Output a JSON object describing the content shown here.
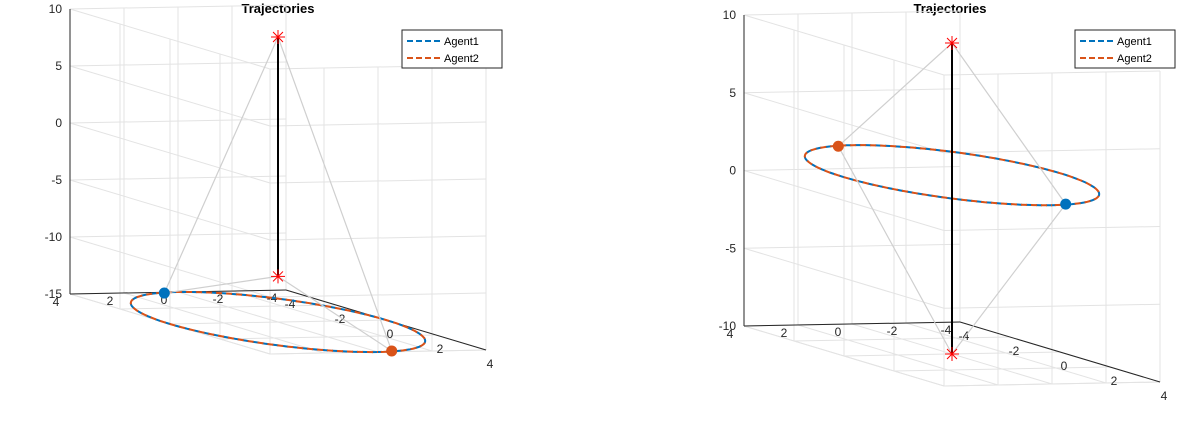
{
  "chart_data": [
    {
      "type": "line",
      "title": "Trajectories",
      "legend": {
        "placement": "top-right",
        "entries": [
          "Agent1",
          "Agent2"
        ]
      },
      "zlim": [
        -15,
        10
      ],
      "z_ticks": [
        "10",
        "5",
        "0",
        "-5",
        "-10",
        "-15"
      ],
      "y_ticks": [
        "4",
        "2",
        "0",
        "-2",
        "-4"
      ],
      "x_ticks": [
        "-4",
        "-2",
        "0",
        "2",
        "4"
      ],
      "grid": true,
      "circle_radius": 4,
      "circle_z": -15,
      "pole_base_z": -15,
      "top_marker_z": 10,
      "bottom_marker_z": -11,
      "agent1_position": [
        -3.9,
        0.6,
        -15
      ],
      "agent2_position": [
        3.9,
        -0.6,
        -15
      ],
      "series": [
        {
          "name": "Agent1",
          "color": "#0072BD"
        },
        {
          "name": "Agent2",
          "color": "#D95319"
        }
      ]
    },
    {
      "type": "line",
      "title": "Trajectories",
      "legend": {
        "placement": "top-right",
        "entries": [
          "Agent1",
          "Agent2"
        ]
      },
      "zlim": [
        -10,
        10
      ],
      "z_ticks": [
        "10",
        "5",
        "0",
        "-5",
        "-10"
      ],
      "y_ticks": [
        "4",
        "2",
        "0",
        "-2",
        "-4"
      ],
      "x_ticks": [
        "-4",
        "-2",
        "0",
        "2",
        "4"
      ],
      "grid": true,
      "circle_radius": 4,
      "circle_z": 1.5,
      "pole_base_z": -10,
      "top_marker_z": 10,
      "bottom_marker_z": -10,
      "agent1_position": [
        3.9,
        -0.6,
        1.5
      ],
      "agent2_position": [
        -3.9,
        0.6,
        1.5
      ],
      "series": [
        {
          "name": "Agent1",
          "color": "#0072BD"
        },
        {
          "name": "Agent2",
          "color": "#D95319"
        }
      ]
    }
  ]
}
